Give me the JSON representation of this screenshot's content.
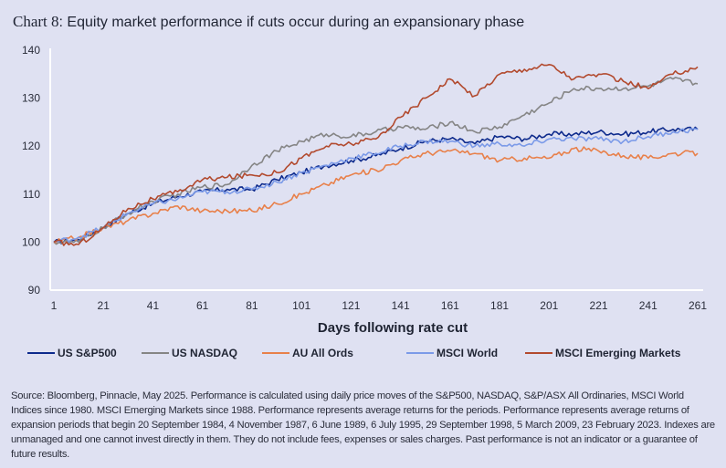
{
  "title": {
    "lead": "Chart 8",
    "rest": ": Equity market performance if cuts occur during an expansionary phase"
  },
  "chart_data": {
    "type": "line",
    "title": "Chart 8: Equity market performance if cuts occur during an expansionary phase",
    "xlabel": "Days following rate cut",
    "ylabel": "",
    "ylim": [
      90,
      140
    ],
    "xlim": [
      1,
      261
    ],
    "yticks": [
      90,
      100,
      110,
      120,
      130,
      140
    ],
    "xticks": [
      1,
      21,
      41,
      61,
      81,
      101,
      121,
      141,
      161,
      181,
      201,
      221,
      241,
      261
    ],
    "grid": false,
    "legend_position": "bottom",
    "x": [
      1,
      11,
      21,
      31,
      41,
      51,
      61,
      71,
      81,
      91,
      101,
      111,
      121,
      131,
      141,
      151,
      161,
      171,
      181,
      191,
      201,
      211,
      221,
      231,
      241,
      251,
      261
    ],
    "series": [
      {
        "name": "US S&P500",
        "color": "#0d2a8c",
        "values": [
          100,
          100.5,
          103,
          106,
          108,
          109.5,
          110.5,
          111,
          111,
          113,
          114.5,
          116,
          117,
          118,
          119.5,
          121,
          121.5,
          120.5,
          122,
          121.5,
          122.5,
          122.5,
          123,
          122.5,
          123,
          123.5,
          123.5
        ]
      },
      {
        "name": "US NASDAQ",
        "color": "#858585",
        "values": [
          100,
          100,
          103,
          106,
          108.5,
          110,
          111.5,
          112,
          116,
          119,
          121,
          122.5,
          122,
          123,
          124,
          123.5,
          125,
          123,
          124,
          126.5,
          129,
          132,
          132,
          132,
          132.5,
          134,
          133
        ]
      },
      {
        "name": "AU All Ords",
        "color": "#e8804a",
        "values": [
          100,
          101,
          103,
          104.5,
          106,
          107.5,
          106.5,
          106.5,
          106.5,
          108,
          110,
          112,
          114,
          115,
          117,
          118.5,
          119,
          118.5,
          117,
          117.5,
          117.5,
          119.5,
          119,
          118,
          117.5,
          118.5,
          118.5
        ]
      },
      {
        "name": "MSCI World",
        "color": "#7b9ae8",
        "values": [
          100,
          101,
          103,
          106,
          108,
          109,
          110.5,
          110.5,
          111,
          112.5,
          114.5,
          116,
          117.5,
          118.5,
          120,
          121,
          121,
          120,
          120.5,
          120,
          121.5,
          121.5,
          121.5,
          121,
          122,
          123,
          123.5
        ]
      },
      {
        "name": "MSCI Emerging Markets",
        "color": "#b24a2e",
        "values": [
          100,
          99.5,
          103,
          107,
          109,
          110.5,
          113,
          113.5,
          114,
          114.5,
          117.5,
          120,
          120.5,
          121.5,
          126,
          130,
          134,
          130.5,
          135,
          136,
          137,
          134,
          135,
          133.5,
          132,
          135,
          136.5
        ]
      }
    ]
  },
  "source_note": "Source: Bloomberg, Pinnacle, May 2025. Performance is calculated using daily price moves of the S&P500, NASDAQ, S&P/ASX All Ordinaries, MSCI World Indices since 1980. MSCI Emerging Markets since 1988. Performance represents average returns for the periods. Performance represents average returns of expansion periods that begin 20 September 1984, 4 November 1987, 6 June 1989, 6 July 1995, 29 September 1998, 5 March 2009, 23 February 2023. Indexes are unmanaged and one cannot invest directly in them. They do not include fees, expenses or sales charges. Past performance is not an indicator or a guarantee of future results."
}
